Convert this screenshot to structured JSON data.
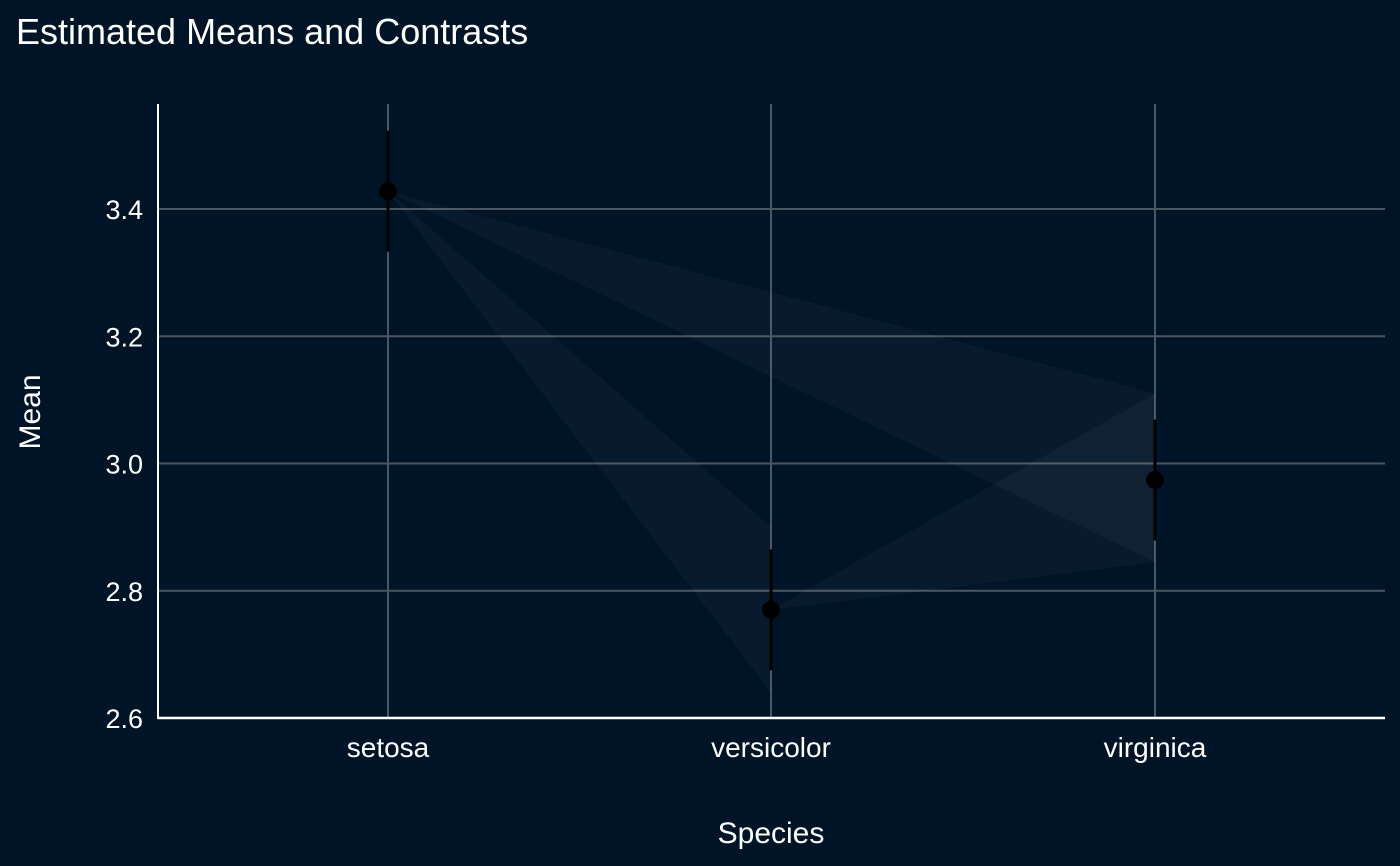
{
  "chart_data": {
    "type": "scatter",
    "title": "Estimated Means and Contrasts",
    "xlabel": "Species",
    "ylabel": "Mean",
    "categories": [
      "setosa",
      "versicolor",
      "virginica"
    ],
    "means": [
      3.428,
      2.77,
      2.974
    ],
    "ci_lower": [
      3.333,
      2.675,
      2.879
    ],
    "ci_upper": [
      3.523,
      2.865,
      3.069
    ],
    "ylim": [
      2.6,
      3.565
    ],
    "yticks": [
      2.6,
      2.8,
      3.0,
      3.2,
      3.4
    ],
    "ytick_labels": [
      "2.6",
      "2.8",
      "3.0",
      "3.2",
      "3.4"
    ],
    "contrasts": [
      {
        "from": "setosa",
        "to": "versicolor",
        "center": 2.77,
        "lower": 2.64,
        "upper": 2.9
      },
      {
        "from": "setosa",
        "to": "virginica",
        "center": 2.974,
        "lower": 2.845,
        "upper": 3.11
      },
      {
        "from": "versicolor",
        "to": "virginica",
        "center": 2.974,
        "lower": 2.845,
        "upper": 3.11
      }
    ],
    "grid": true,
    "legend": "none"
  },
  "colors": {
    "background": "#001428",
    "grid": "#4a5662",
    "axis": "#ffffff",
    "text": "#ffffff",
    "point": "#000000",
    "contrast_fill": "#ffffff"
  }
}
